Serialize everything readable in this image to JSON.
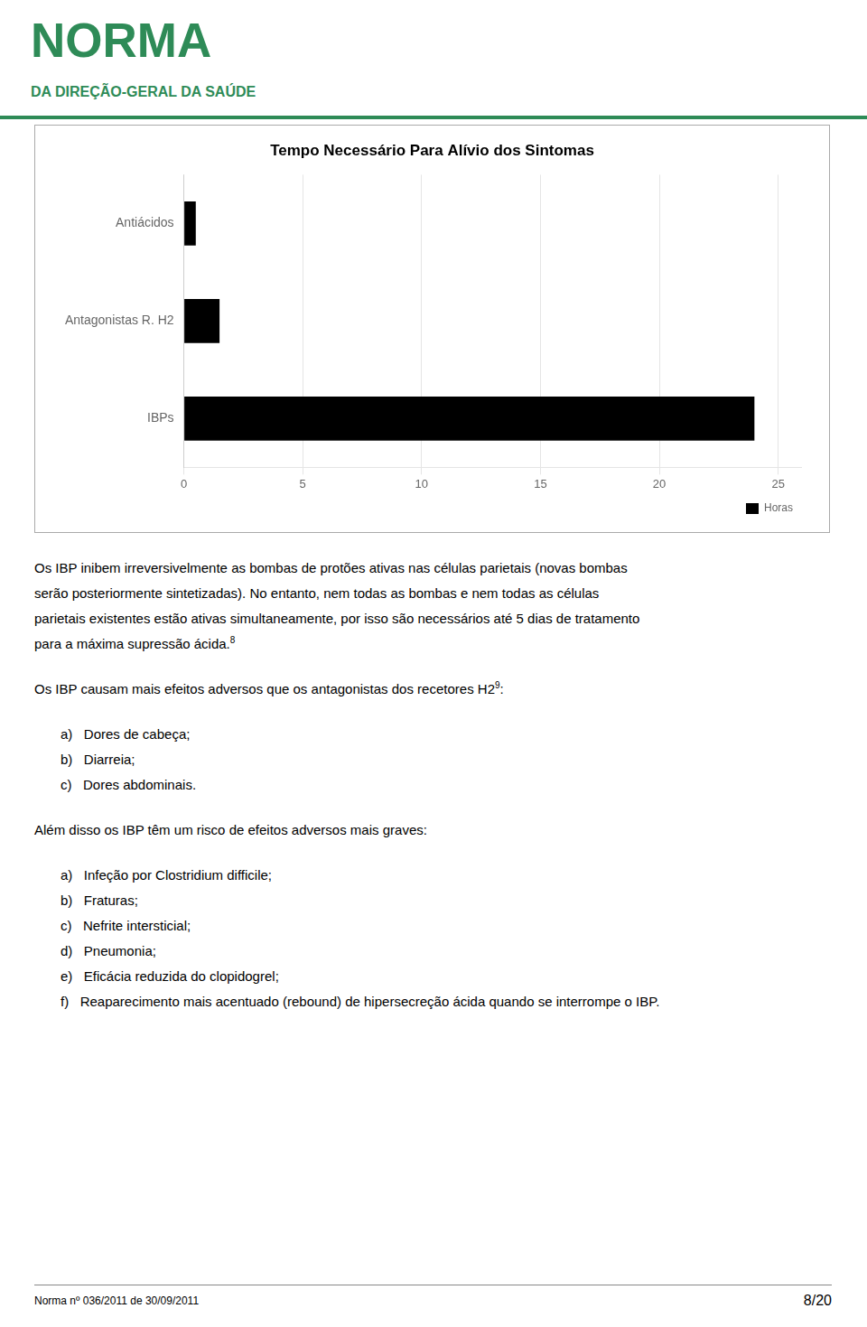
{
  "header": {
    "title": "NORMA",
    "subtitle": "DA DIREÇÃO-GERAL DA SAÚDE",
    "color": "#2E8B57"
  },
  "chart_data": {
    "type": "bar",
    "orientation": "horizontal",
    "title": "Tempo Necessário Para Alívio dos Sintomas",
    "categories": [
      "Antiácidos",
      "Antagonistas R. H2",
      "IBPs"
    ],
    "series": [
      {
        "name": "Horas",
        "color": "#000000",
        "values": [
          0.5,
          1.5,
          24
        ]
      }
    ],
    "xlim": [
      0,
      26
    ],
    "xticks": [
      0,
      5,
      10,
      15,
      20,
      25
    ],
    "grid": true,
    "legend": "lower right"
  },
  "body": [
    {
      "lines": [
        "Os IBP inibem irreversivelmente as bombas de protões ativas nas células parietais (novas bombas",
        "serão posteriormente sintetizadas). No entanto, nem todas as bombas e nem todas as células",
        "parietais existentes estão ativas simultaneamente, por isso são necessários até 5 dias de tratamento",
        "para a máxima supressão ácida."
      ],
      "sup": "8"
    },
    {
      "lines": [
        "Os IBP causam mais efeitos adversos que os antagonistas dos recetores H2"
      ],
      "sup": "9",
      "after_sup": ":"
    },
    {
      "items": [
        "a)   Dores de cabeça;",
        "b)   Diarreia;",
        "c)   Dores abdominais."
      ]
    },
    {
      "lines": [
        "Além disso os IBP têm um risco de efeitos adversos mais graves:"
      ]
    },
    {
      "items": [
        "a)   Infeção por Clostridium difficile;",
        "b)   Fraturas;",
        "c)   Nefrite intersticial;",
        "d)   Pneumonia;",
        "e)   Eficácia reduzida do clopidogrel;",
        "f)   Reaparecimento mais acentuado (rebound) de hipersecreção ácida quando se interrompe o IBP."
      ]
    }
  ],
  "footer": {
    "text": "Norma nº 036/2011 de 30/09/2011",
    "page": "8/20"
  }
}
